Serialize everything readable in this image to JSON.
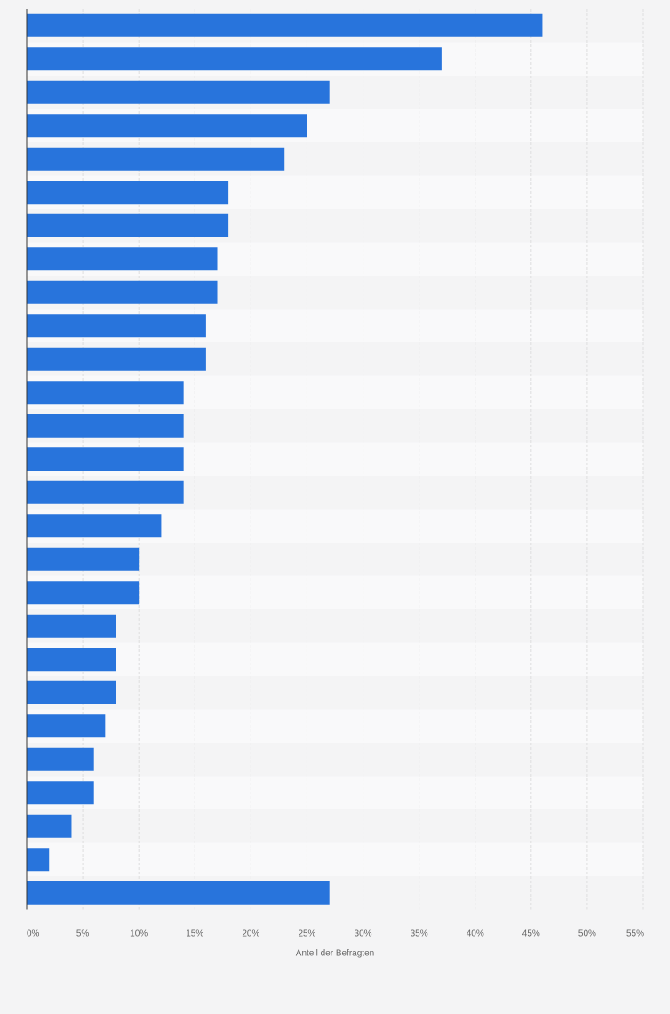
{
  "chart_data": {
    "type": "bar",
    "orientation": "horizontal",
    "categories": [
      "",
      "",
      "",
      "",
      "",
      "",
      "",
      "",
      "",
      "",
      "",
      "",
      "",
      "",
      "",
      "",
      "",
      "",
      "",
      "",
      "",
      "",
      "",
      "",
      "",
      "",
      ""
    ],
    "values": [
      46,
      37,
      27,
      25,
      23,
      18,
      18,
      17,
      17,
      16,
      16,
      14,
      14,
      14,
      14,
      12,
      10,
      10,
      8,
      8,
      8,
      7,
      6,
      6,
      4,
      2,
      27
    ],
    "title": "",
    "xlabel": "Anteil der Befragten",
    "ylabel": "",
    "xlim": [
      0,
      55
    ],
    "xticks": [
      "0%",
      "5%",
      "10%",
      "15%",
      "20%",
      "25%",
      "30%",
      "35%",
      "40%",
      "45%",
      "50%",
      "55%"
    ],
    "grid": true,
    "legend": "none",
    "colors": {
      "bar": "#2874dc",
      "background": "#f4f4f5",
      "band_light": "#f9f9fa",
      "band_dark": "#f4f4f5",
      "gridline": "#dedede",
      "axis": "#333333"
    }
  }
}
